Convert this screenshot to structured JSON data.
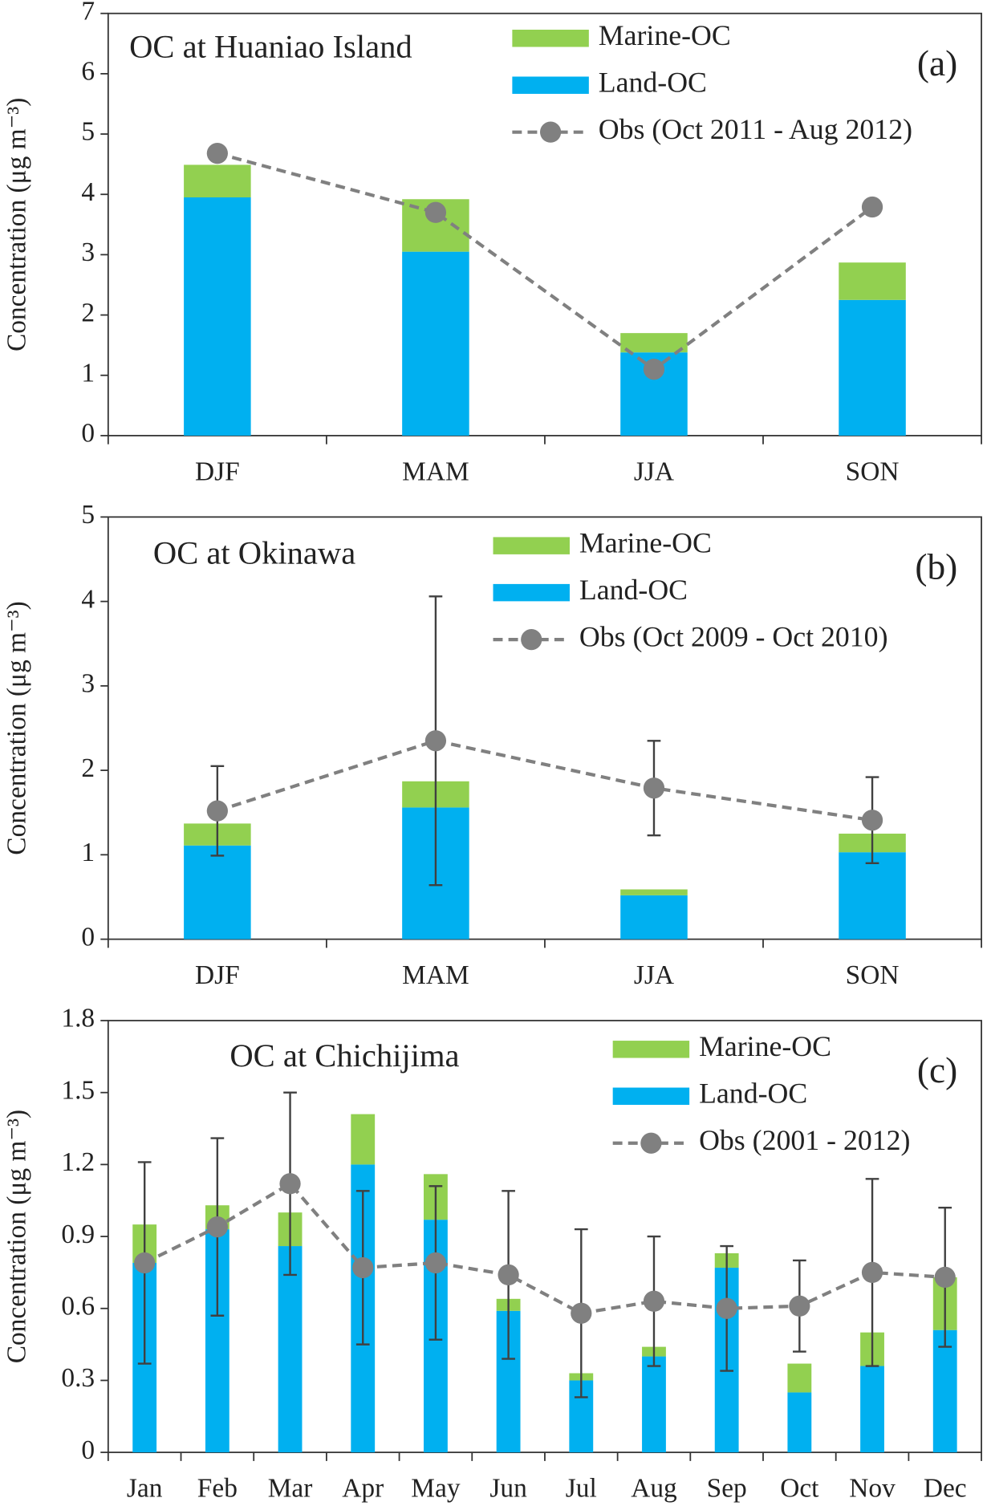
{
  "chart_data": [
    {
      "type": "bar",
      "stacked": true,
      "title": "OC at Huaniao Island",
      "panel": "(a)",
      "ylabel": "Concentration (μg m⁻³)",
      "categories": [
        "DJF",
        "MAM",
        "JJA",
        "SON"
      ],
      "series": [
        {
          "name": "Land-OC",
          "color": "#00b0f0",
          "values": [
            3.95,
            3.05,
            1.38,
            2.25
          ]
        },
        {
          "name": "Marine-OC",
          "color": "#92d050",
          "values": [
            0.54,
            0.87,
            0.32,
            0.62
          ]
        },
        {
          "name": "Obs (Oct 2011 - Aug 2012)",
          "type": "line",
          "color": "#808080",
          "values": [
            4.68,
            3.7,
            1.1,
            3.79
          ]
        }
      ],
      "ylim": [
        0,
        7
      ],
      "yticks": [
        0,
        1,
        2,
        3,
        4,
        5,
        6,
        7
      ]
    },
    {
      "type": "bar",
      "stacked": true,
      "title": "OC at Okinawa",
      "panel": "(b)",
      "ylabel": "Concentration (μg m⁻³)",
      "categories": [
        "DJF",
        "MAM",
        "JJA",
        "SON"
      ],
      "series": [
        {
          "name": "Land-OC",
          "color": "#00b0f0",
          "values": [
            1.11,
            1.56,
            0.52,
            1.03
          ]
        },
        {
          "name": "Marine-OC",
          "color": "#92d050",
          "values": [
            0.26,
            0.31,
            0.07,
            0.22
          ]
        },
        {
          "name": "Obs (Oct 2009 - Oct 2010)",
          "type": "line",
          "color": "#808080",
          "values": [
            1.52,
            2.35,
            1.79,
            1.41
          ],
          "errors": [
            0.53,
            1.71,
            0.56,
            0.51
          ]
        }
      ],
      "ylim": [
        0,
        5
      ],
      "yticks": [
        0,
        1,
        2,
        3,
        4,
        5
      ]
    },
    {
      "type": "bar",
      "stacked": true,
      "title": "OC at Chichijima",
      "panel": "(c)",
      "ylabel": "Concentration (μg m⁻³)",
      "categories": [
        "Jan",
        "Feb",
        "Mar",
        "Apr",
        "May",
        "Jun",
        "Jul",
        "Aug",
        "Sep",
        "Oct",
        "Nov",
        "Dec"
      ],
      "series": [
        {
          "name": "Land-OC",
          "color": "#00b0f0",
          "values": [
            0.79,
            0.93,
            0.86,
            1.2,
            0.97,
            0.59,
            0.3,
            0.4,
            0.77,
            0.25,
            0.36,
            0.51
          ]
        },
        {
          "name": "Marine-OC",
          "color": "#92d050",
          "values": [
            0.16,
            0.1,
            0.14,
            0.21,
            0.19,
            0.05,
            0.03,
            0.04,
            0.06,
            0.12,
            0.14,
            0.22
          ]
        },
        {
          "name": "Obs (2001 - 2012)",
          "type": "line",
          "color": "#808080",
          "values": [
            0.79,
            0.94,
            1.12,
            0.77,
            0.79,
            0.74,
            0.58,
            0.63,
            0.6,
            0.61,
            0.75,
            0.73
          ],
          "errors": [
            0.42,
            0.37,
            0.38,
            0.32,
            0.32,
            0.35,
            0.35,
            0.27,
            0.26,
            0.19,
            0.39,
            0.29
          ]
        }
      ],
      "ylim": [
        0,
        1.8
      ],
      "yticks": [
        0,
        0.3,
        0.6,
        0.9,
        1.2,
        1.5,
        1.8
      ]
    }
  ]
}
